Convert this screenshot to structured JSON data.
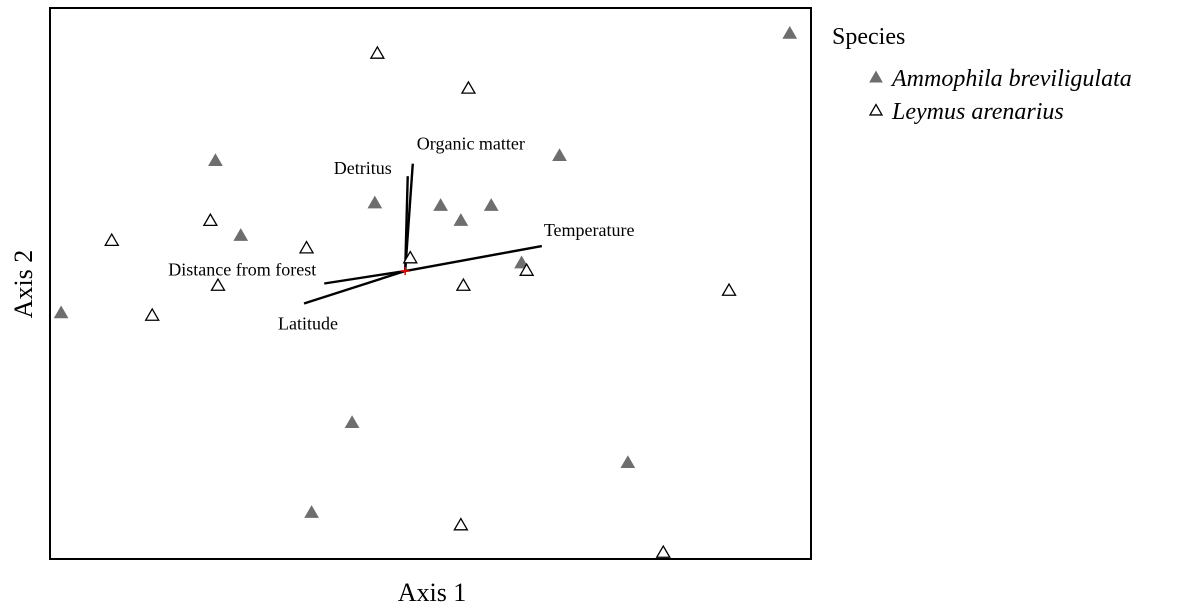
{
  "chart_data": {
    "type": "scatter",
    "title": "",
    "xlabel": "Axis 1",
    "ylabel": "Axis 2",
    "xlim": [
      -1.4,
      1.6
    ],
    "ylim": [
      -1.15,
      1.05
    ],
    "grid": false,
    "ticks_shown": false,
    "legend": {
      "title": "Species",
      "placement": "right"
    },
    "series": [
      {
        "name": "Ammophila breviligulata",
        "marker": "filled-triangle",
        "color": "#6e6e6e",
        "points": [
          {
            "x": 1.52,
            "y": 0.95
          },
          {
            "x": 0.61,
            "y": 0.46
          },
          {
            "x": -0.75,
            "y": 0.44
          },
          {
            "x": -0.12,
            "y": 0.27
          },
          {
            "x": 0.14,
            "y": 0.26
          },
          {
            "x": 0.34,
            "y": 0.26
          },
          {
            "x": 0.22,
            "y": 0.2
          },
          {
            "x": -0.65,
            "y": 0.14
          },
          {
            "x": 0.46,
            "y": 0.03
          },
          {
            "x": -1.36,
            "y": -0.17
          },
          {
            "x": -0.21,
            "y": -0.61
          },
          {
            "x": 0.88,
            "y": -0.77
          },
          {
            "x": -0.37,
            "y": -0.97
          }
        ]
      },
      {
        "name": "Leymus arenarius",
        "marker": "open-triangle",
        "color": "#000000",
        "points": [
          {
            "x": -0.11,
            "y": 0.87
          },
          {
            "x": 0.25,
            "y": 0.73
          },
          {
            "x": -0.77,
            "y": 0.2
          },
          {
            "x": -1.16,
            "y": 0.12
          },
          {
            "x": -0.39,
            "y": 0.09
          },
          {
            "x": 0.02,
            "y": 0.05
          },
          {
            "x": 0.48,
            "y": 0.0
          },
          {
            "x": -0.74,
            "y": -0.06
          },
          {
            "x": 0.23,
            "y": -0.06
          },
          {
            "x": 1.28,
            "y": -0.08
          },
          {
            "x": -1.0,
            "y": -0.18
          },
          {
            "x": 0.22,
            "y": -1.02
          },
          {
            "x": 1.02,
            "y": -1.13
          }
        ]
      }
    ],
    "vectors": [
      {
        "name": "Organic matter",
        "x": 0.03,
        "y": 0.43
      },
      {
        "name": "Detritus",
        "x": 0.01,
        "y": 0.38
      },
      {
        "name": "Temperature",
        "x": 0.54,
        "y": 0.1
      },
      {
        "name": "Distance from forest",
        "x": -0.32,
        "y": -0.05
      },
      {
        "name": "Latitude",
        "x": -0.4,
        "y": -0.13
      }
    ],
    "origin_marker_color": "#ff0000"
  }
}
